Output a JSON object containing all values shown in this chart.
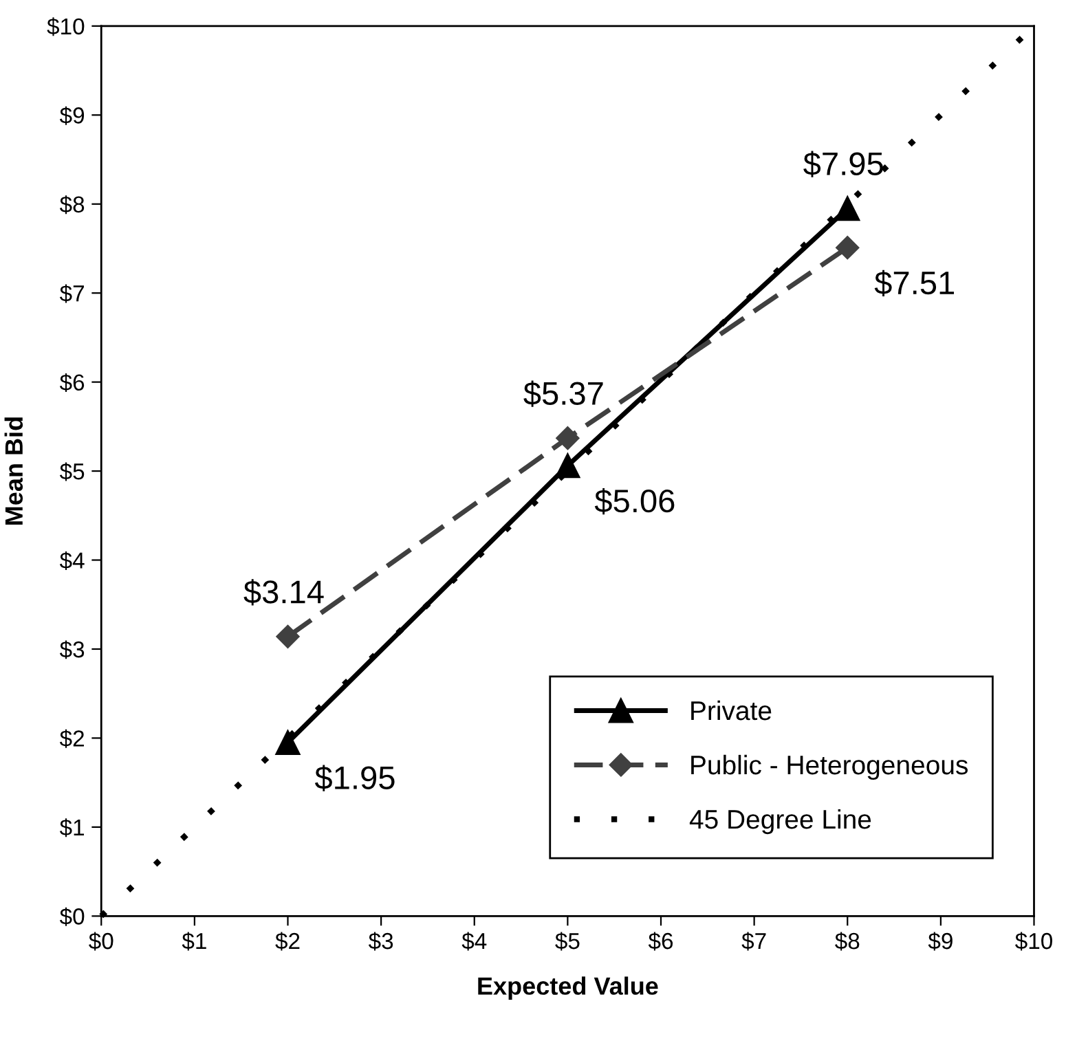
{
  "chart_data": {
    "type": "line",
    "xlabel": "Expected Value",
    "ylabel": "Mean Bid",
    "xlim": [
      0,
      10
    ],
    "ylim": [
      0,
      10
    ],
    "xticks": [
      {
        "value": 0,
        "label": "$0"
      },
      {
        "value": 1,
        "label": "$1"
      },
      {
        "value": 2,
        "label": "$2"
      },
      {
        "value": 3,
        "label": "$3"
      },
      {
        "value": 4,
        "label": "$4"
      },
      {
        "value": 5,
        "label": "$5"
      },
      {
        "value": 6,
        "label": "$6"
      },
      {
        "value": 7,
        "label": "$7"
      },
      {
        "value": 8,
        "label": "$8"
      },
      {
        "value": 9,
        "label": "$9"
      },
      {
        "value": 10,
        "label": "$10"
      }
    ],
    "yticks": [
      {
        "value": 0,
        "label": "$0"
      },
      {
        "value": 1,
        "label": "$1"
      },
      {
        "value": 2,
        "label": "$2"
      },
      {
        "value": 3,
        "label": "$3"
      },
      {
        "value": 4,
        "label": "$4"
      },
      {
        "value": 5,
        "label": "$5"
      },
      {
        "value": 6,
        "label": "$6"
      },
      {
        "value": 7,
        "label": "$7"
      },
      {
        "value": 8,
        "label": "$8"
      },
      {
        "value": 9,
        "label": "$9"
      },
      {
        "value": 10,
        "label": "$10"
      }
    ],
    "grid": false,
    "legend": "bottom right",
    "series": [
      {
        "name": "Private",
        "color": "#000000",
        "x": [
          2,
          5,
          8
        ],
        "values": [
          1.95,
          5.06,
          7.95
        ],
        "marker": "triangle",
        "line_style": "solid",
        "value_labels": [
          "$1.95",
          "$5.06",
          "$7.95"
        ]
      },
      {
        "name": "Public - Heterogeneous",
        "color": "#404040",
        "x": [
          2,
          5,
          8
        ],
        "values": [
          3.14,
          5.37,
          7.51
        ],
        "marker": "diamond",
        "line_style": "dashed",
        "value_labels": [
          "$3.14",
          "$5.37",
          "$7.51"
        ]
      },
      {
        "name": "45 Degree Line",
        "color": "#000000",
        "x": [
          0,
          10
        ],
        "values": [
          0,
          10
        ],
        "marker": "none",
        "line_style": "dotted"
      }
    ]
  }
}
